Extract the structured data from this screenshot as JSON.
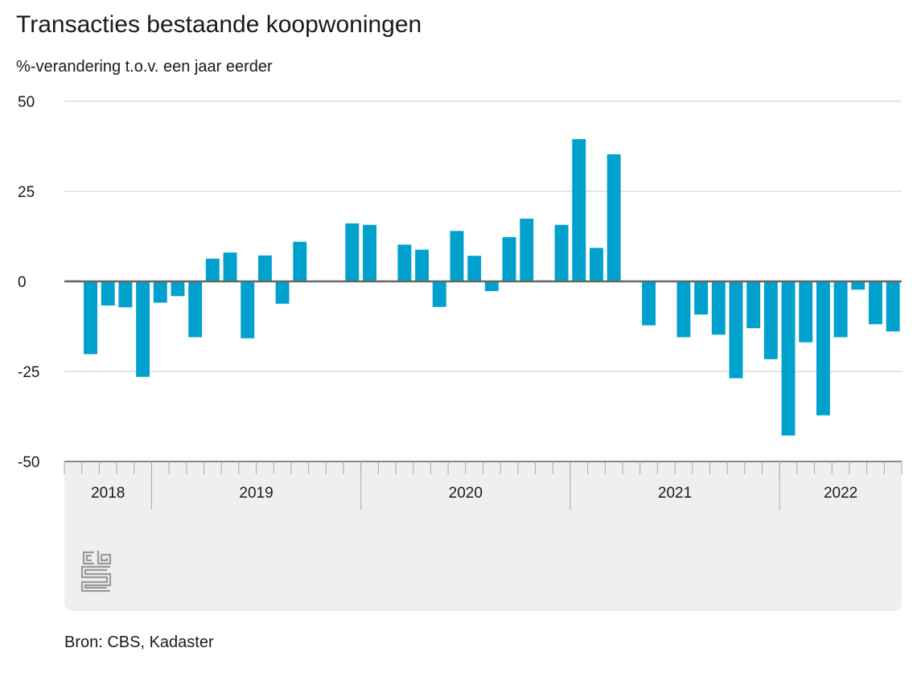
{
  "title": "Transacties bestaande koopwoningen",
  "subtitle": "%-verandering t.o.v. een jaar eerder",
  "source": "Bron: CBS, Kadaster",
  "logo": "cbs",
  "colors": {
    "bar": "#00a1cd",
    "grid": "#cccccc",
    "zero": "#666666",
    "panel": "#efefef"
  },
  "chart_data": {
    "type": "bar",
    "title": "Transacties bestaande koopwoningen",
    "ylabel": "%-verandering t.o.v. een jaar eerder",
    "ylim": [
      -50,
      50
    ],
    "yticks": [
      50,
      25,
      0,
      -25,
      -50
    ],
    "years": [
      {
        "label": "2018",
        "months": 5
      },
      {
        "label": "2019",
        "months": 12
      },
      {
        "label": "2020",
        "months": 12
      },
      {
        "label": "2021",
        "months": 12
      },
      {
        "label": "2022",
        "months": 7
      }
    ],
    "categories": [
      "2018-08",
      "2018-09",
      "2018-10",
      "2018-11",
      "2018-12",
      "2019-01",
      "2019-02",
      "2019-03",
      "2019-04",
      "2019-05",
      "2019-06",
      "2019-07",
      "2019-08",
      "2019-09",
      "2019-10",
      "2019-11",
      "2019-12",
      "2020-01",
      "2020-02",
      "2020-03",
      "2020-04",
      "2020-05",
      "2020-06",
      "2020-07",
      "2020-08",
      "2020-09",
      "2020-10",
      "2020-11",
      "2020-12",
      "2021-01",
      "2021-02",
      "2021-03",
      "2021-04",
      "2021-05",
      "2021-06",
      "2021-07",
      "2021-08",
      "2021-09",
      "2021-10",
      "2021-11",
      "2021-12",
      "2022-01",
      "2022-02",
      "2022-03",
      "2022-04",
      "2022-05",
      "2022-06",
      "2022-07"
    ],
    "values": [
      0.3,
      -20.2,
      -6.7,
      -7.2,
      -26.5,
      -5.9,
      -4.1,
      -15.5,
      6.3,
      8.0,
      -15.8,
      7.2,
      -6.2,
      11.0,
      0,
      0,
      16.1,
      15.7,
      0,
      10.2,
      8.8,
      -7.1,
      14.0,
      7.1,
      -2.7,
      12.3,
      17.4,
      0.3,
      15.7,
      39.5,
      9.3,
      35.3,
      0.2,
      -12.2,
      0,
      -15.5,
      -9.2,
      -14.8,
      -26.9,
      -13.0,
      -21.6,
      -42.8,
      -16.9,
      -37.2,
      -15.5,
      -2.3,
      -11.9,
      -13.9
    ]
  }
}
